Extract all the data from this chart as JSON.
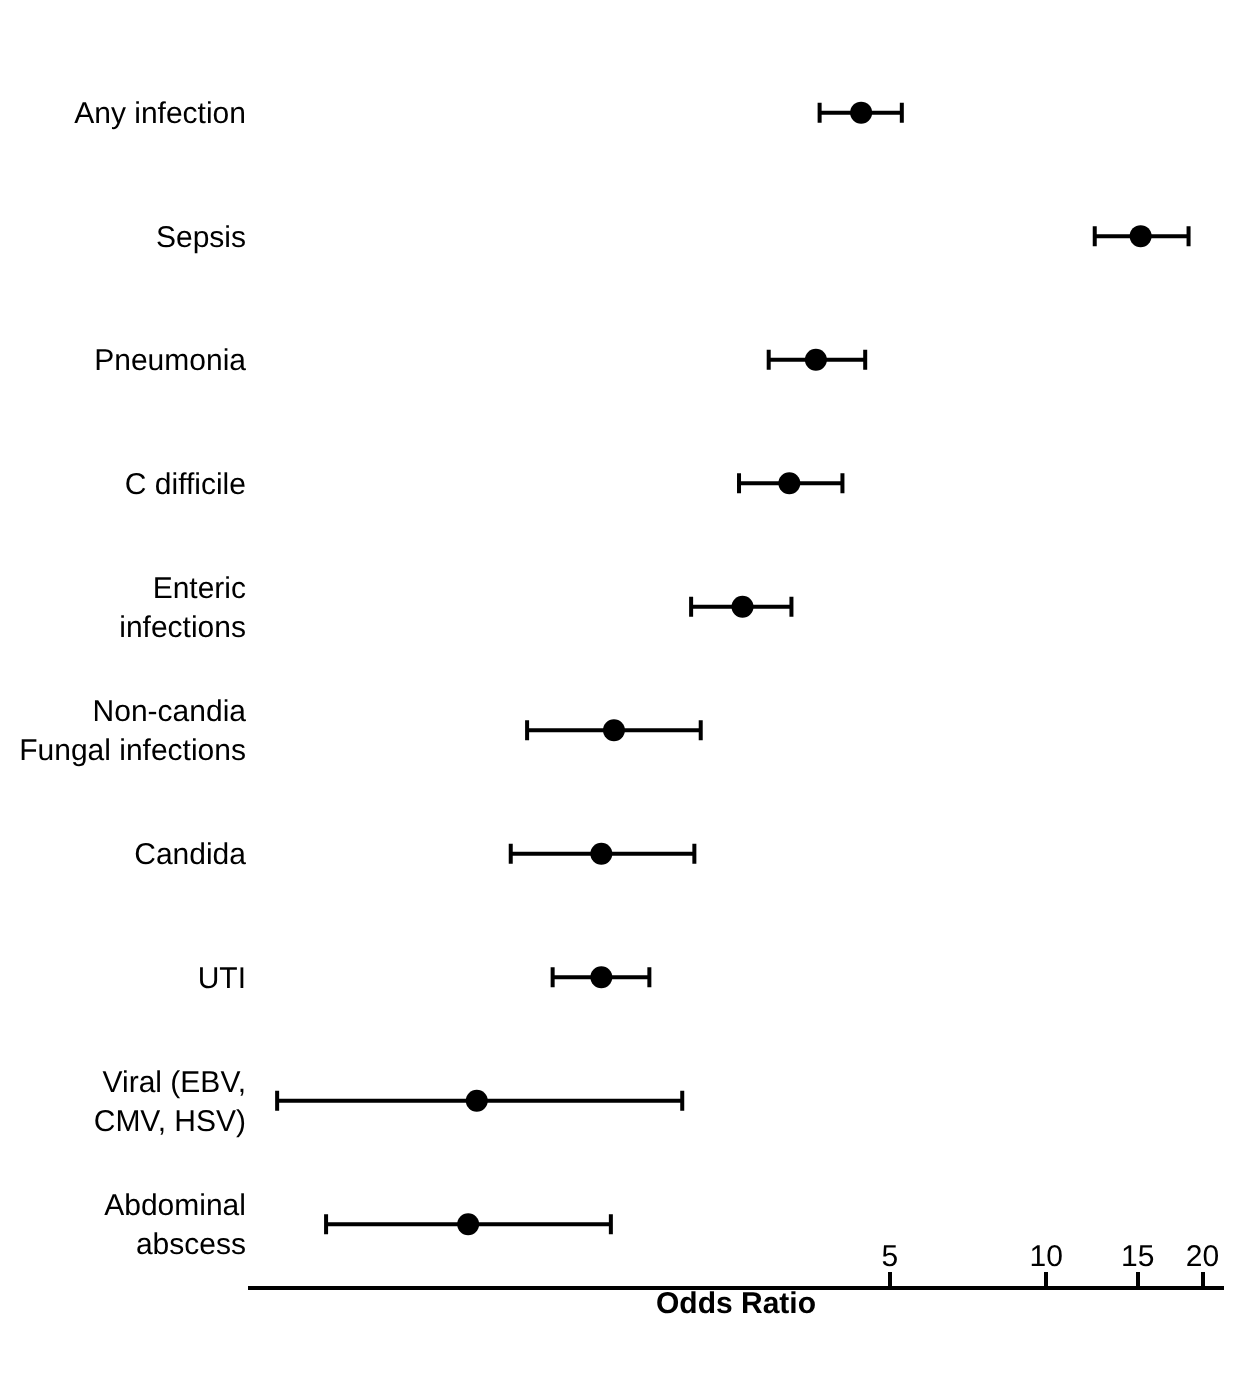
{
  "chart_data": {
    "type": "scatter",
    "xlabel": "Odds Ratio",
    "log": "x",
    "marker": "circle",
    "categories": [
      "Any infection",
      "Sepsis",
      "Pneumonia",
      "C difficile",
      "Enteric\ninfections",
      "Non-candia\nFungal infections",
      "Candida",
      "UTI",
      "Viral (EBV,\nCMV, HSV)",
      "Abdominal\nabscess"
    ],
    "series": [
      {
        "color": "#000000",
        "values": [
          4.4,
          15.2,
          3.6,
          3.2,
          2.6,
          1.47,
          1.39,
          1.39,
          0.8,
          0.77
        ],
        "errors": [
          [
            3.66,
            5.27
          ],
          [
            12.4,
            18.8
          ],
          [
            2.92,
            4.48
          ],
          [
            2.56,
            4.05
          ],
          [
            2.07,
            3.23
          ],
          [
            1.0,
            2.16
          ],
          [
            0.93,
            2.1
          ],
          [
            1.12,
            1.72
          ],
          [
            0.33,
            1.99
          ],
          [
            0.41,
            1.45
          ]
        ]
      }
    ],
    "orientation": "horizontal",
    "xlim": [
      0.29,
      22
    ],
    "xticks": [
      5,
      10,
      15,
      20
    ]
  }
}
